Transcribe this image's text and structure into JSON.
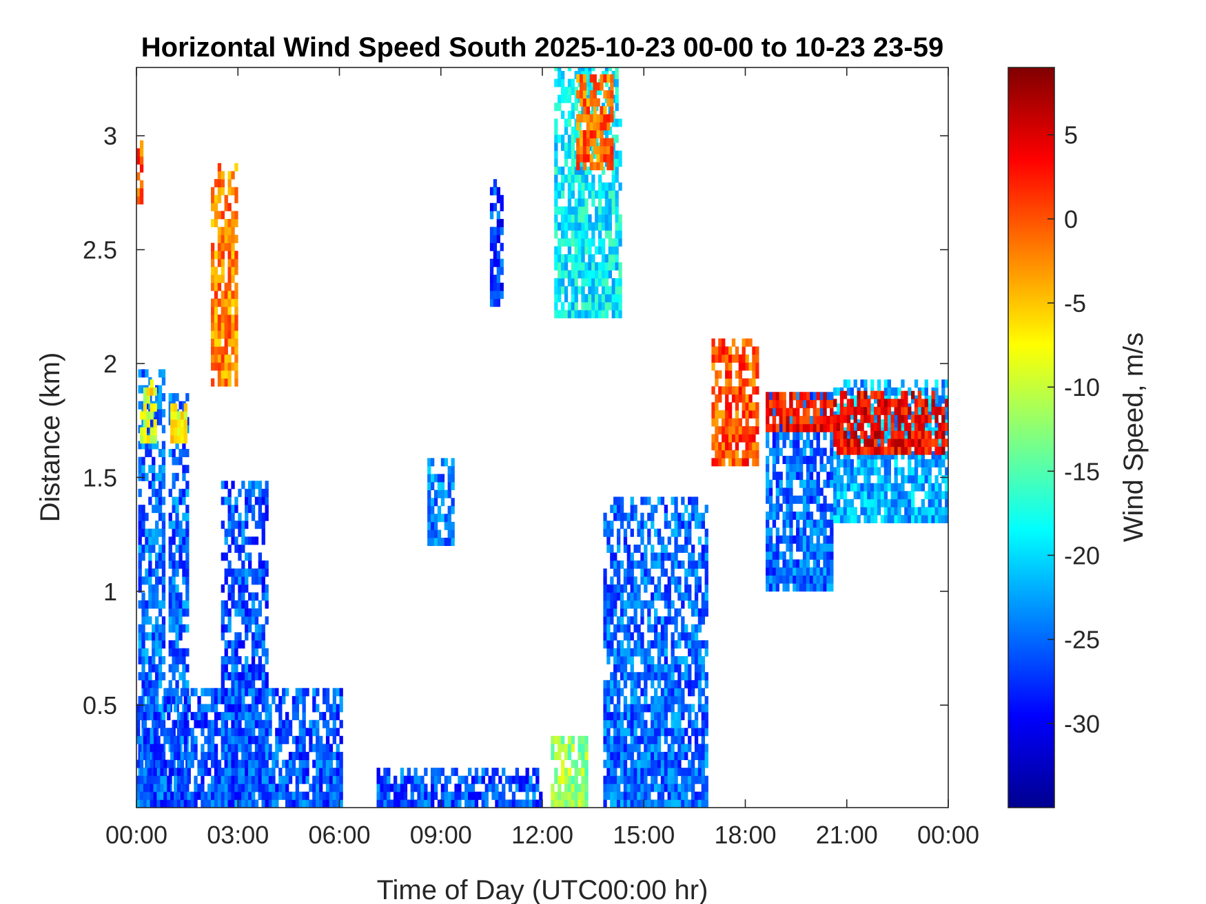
{
  "chart_data": {
    "type": "heatmap",
    "title": "Horizontal Wind Speed South 2025-10-23 00-00 to 10-23 23-59",
    "xlabel": "Time of Day (UTC00:00 hr)",
    "ylabel": "Distance (km)",
    "x_ticks": [
      "00:00",
      "03:00",
      "06:00",
      "09:00",
      "12:00",
      "15:00",
      "18:00",
      "21:00",
      "00:00"
    ],
    "x_tick_hours": [
      0,
      3,
      6,
      9,
      12,
      15,
      18,
      21,
      24
    ],
    "xlim_hours": [
      0,
      24
    ],
    "y_ticks": [
      "0.5",
      "1",
      "1.5",
      "2",
      "2.5",
      "3"
    ],
    "y_tick_values": [
      0.5,
      1,
      1.5,
      2,
      2.5,
      3
    ],
    "ylim": [
      0.05,
      3.3
    ],
    "colorbar": {
      "label": "Wind Speed, m/s",
      "ticks": [
        "5",
        "0",
        "-5",
        "-10",
        "-15",
        "-20",
        "-25",
        "-30"
      ],
      "tick_values": [
        5,
        0,
        -5,
        -10,
        -15,
        -20,
        -25,
        -30
      ],
      "clim": [
        -35,
        9
      ],
      "colormap": "jet"
    },
    "regions": [
      {
        "name": "early-low-band",
        "t_start": 0.05,
        "t_end": 0.8,
        "z_bottom": 0.05,
        "z_top": 1.95,
        "speed": -25
      },
      {
        "name": "early-top-band",
        "t_start": 0.1,
        "t_end": 0.6,
        "z_bottom": 1.65,
        "z_top": 1.9,
        "speed": -8
      },
      {
        "name": "early-second-column",
        "t_start": 0.95,
        "t_end": 1.55,
        "z_bottom": 0.05,
        "z_top": 1.85,
        "speed": -25
      },
      {
        "name": "early-second-top",
        "t_start": 1.0,
        "t_end": 1.5,
        "z_bottom": 1.65,
        "z_top": 1.82,
        "speed": -8
      },
      {
        "name": "night-low-layer",
        "t_start": 0.0,
        "t_end": 6.0,
        "z_bottom": 0.05,
        "z_top": 0.55,
        "speed": -26
      },
      {
        "name": "column-3am",
        "t_start": 2.5,
        "t_end": 3.9,
        "z_bottom": 0.05,
        "z_top": 1.45,
        "speed": -26
      },
      {
        "name": "rising-2am",
        "t_start": 2.2,
        "t_end": 3.0,
        "z_bottom": 1.9,
        "z_top": 2.85,
        "speed": -2
      },
      {
        "name": "spike-0am",
        "t_start": 0.0,
        "t_end": 0.15,
        "z_bottom": 2.7,
        "z_top": 3.0,
        "speed": 0
      },
      {
        "name": "morning-surface",
        "t_start": 7.1,
        "t_end": 11.9,
        "z_bottom": 0.05,
        "z_top": 0.22,
        "speed": -26
      },
      {
        "name": "patch-9am",
        "t_start": 8.6,
        "t_end": 9.3,
        "z_bottom": 1.2,
        "z_top": 1.55,
        "speed": -24
      },
      {
        "name": "patch-11am",
        "t_start": 10.45,
        "t_end": 10.8,
        "z_bottom": 2.25,
        "z_top": 2.8,
        "speed": -27
      },
      {
        "name": "plume-13h",
        "t_start": 12.35,
        "t_end": 14.3,
        "z_bottom": 2.2,
        "z_top": 3.3,
        "speed": -19
      },
      {
        "name": "plume-13h-core",
        "t_start": 13.0,
        "t_end": 14.0,
        "z_bottom": 2.85,
        "z_top": 3.25,
        "speed": -1
      },
      {
        "name": "surface-12h",
        "t_start": 12.25,
        "t_end": 13.3,
        "z_bottom": 0.05,
        "z_top": 0.35,
        "speed": -12
      },
      {
        "name": "afternoon-column",
        "t_start": 13.8,
        "t_end": 16.9,
        "z_bottom": 0.05,
        "z_top": 1.4,
        "speed": -25
      },
      {
        "name": "boundary-17h",
        "t_start": 17.0,
        "t_end": 18.4,
        "z_bottom": 1.55,
        "z_top": 2.1,
        "speed": 0
      },
      {
        "name": "evening-band",
        "t_start": 18.6,
        "t_end": 20.6,
        "z_bottom": 1.0,
        "z_top": 1.85,
        "speed": -25
      },
      {
        "name": "evening-band-top",
        "t_start": 18.6,
        "t_end": 20.6,
        "z_bottom": 1.7,
        "z_top": 1.85,
        "speed": 3
      },
      {
        "name": "night-band",
        "t_start": 20.6,
        "t_end": 24.0,
        "z_bottom": 1.3,
        "z_top": 1.9,
        "speed": -22
      },
      {
        "name": "night-band-top",
        "t_start": 20.6,
        "t_end": 24.0,
        "z_bottom": 1.6,
        "z_top": 1.85,
        "speed": 4
      }
    ]
  }
}
